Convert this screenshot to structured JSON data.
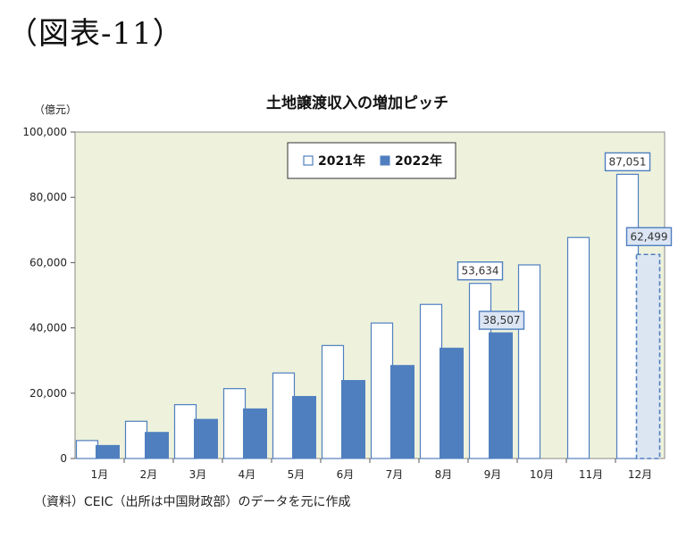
{
  "figure_label": "（図表-11）",
  "source_note": "（資料）CEIC（出所は中国財政部）のデータを元に作成",
  "colors": {
    "plot_bg": "#eef2dc",
    "bar_2022": "#4f7fbf",
    "bar_2021_fill": "#ffffff",
    "bar_2021_stroke": "#4f7fbf",
    "callout_bg_2022": "#dbe5f4",
    "estimate_fill": "#dce6f3"
  },
  "chart_data": {
    "type": "bar",
    "title": "土地譲渡収入の増加ピッチ",
    "ylabel": "（億元）",
    "xlabel": "",
    "ylim": [
      0,
      100000
    ],
    "yticks": [
      0,
      20000,
      40000,
      60000,
      80000,
      100000
    ],
    "ytick_labels": [
      "0",
      "20,000",
      "40,000",
      "60,000",
      "80,000",
      "100,000"
    ],
    "categories": [
      "1月",
      "2月",
      "3月",
      "4月",
      "5月",
      "6月",
      "7月",
      "8月",
      "9月",
      "10月",
      "11月",
      "12月"
    ],
    "series": [
      {
        "name": "2021年",
        "style": "outline",
        "values": [
          5500,
          11400,
          16500,
          21400,
          26200,
          34600,
          41500,
          47200,
          53634,
          59300,
          67700,
          87051
        ]
      },
      {
        "name": "2022年",
        "style": "filled",
        "values": [
          4000,
          8000,
          12000,
          15200,
          19000,
          23900,
          28500,
          33800,
          38507,
          null,
          null,
          62499
        ],
        "estimated_index": 11
      }
    ],
    "annotations": [
      {
        "category_index": 8,
        "series": 0,
        "text": "53,634"
      },
      {
        "category_index": 8,
        "series": 1,
        "text": "38,507"
      },
      {
        "category_index": 11,
        "series": 0,
        "text": "87,051"
      },
      {
        "category_index": 11,
        "series": 1,
        "text": "62,499"
      }
    ],
    "legend_position": "top-center",
    "grid": false
  }
}
